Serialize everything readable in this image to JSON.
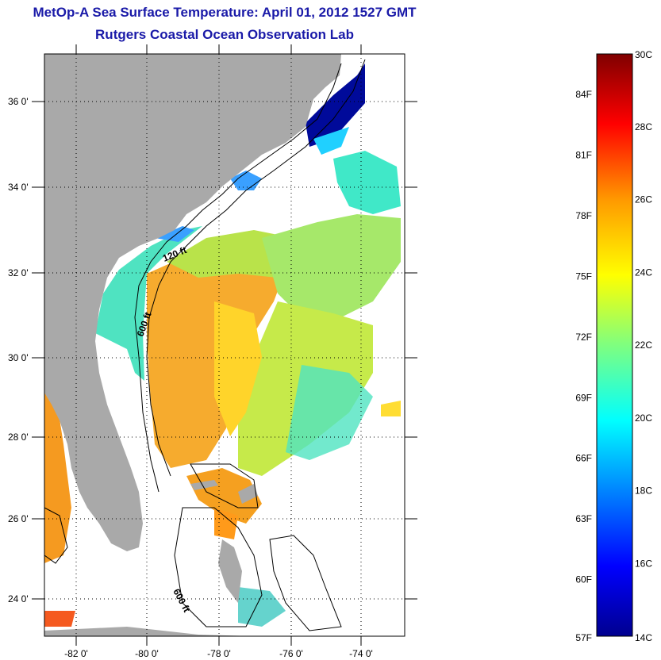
{
  "title_line1": "MetOp-A Sea Surface Temperature:  April 01, 2012 1527 GMT",
  "title_line2": "Rutgers Coastal Ocean Observation Lab",
  "lat_labels": [
    "36 0'",
    "34 0'",
    "32 0'",
    "30 0'",
    "28 0'",
    "26 0'",
    "24 0'"
  ],
  "lon_labels": [
    "-82 0'",
    "-80 0'",
    "-78 0'",
    "-76 0'",
    "-74 0'"
  ],
  "isobaths": [
    "120 ft",
    "600 ft",
    "600 ft"
  ],
  "colorbar": {
    "celsius": [
      "30C",
      "28C",
      "26C",
      "24C",
      "22C",
      "20C",
      "18C",
      "16C",
      "14C"
    ],
    "fahrenheit": [
      "84F",
      "81F",
      "78F",
      "75F",
      "72F",
      "69F",
      "66F",
      "63F",
      "60F",
      "57F"
    ],
    "min_c": 14,
    "max_c": 30
  },
  "colors": {
    "land": "#a9a9a9",
    "title": "#1a1aa8"
  }
}
